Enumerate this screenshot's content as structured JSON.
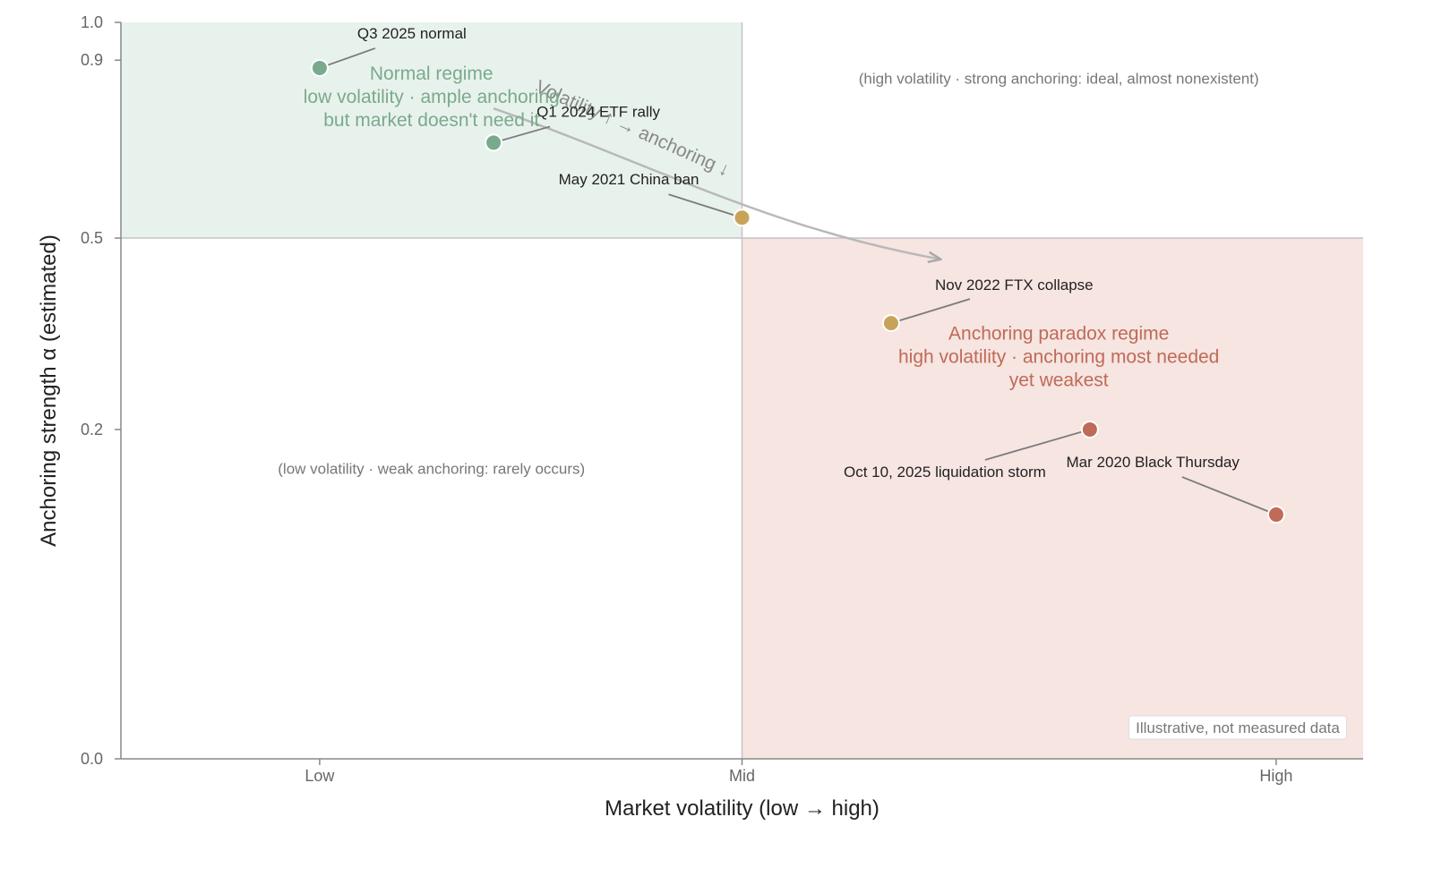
{
  "chart_data": {
    "type": "scatter",
    "xlabel": "Market volatility (low → high)",
    "ylabel": "Anchoring strength α (estimated)",
    "xlim": [
      0,
      1
    ],
    "ylim": [
      0,
      1
    ],
    "y_scale": "sqrt",
    "grid": false,
    "x_ticks": [
      {
        "value": 0.16,
        "label": "Low"
      },
      {
        "value": 0.5,
        "label": "Mid"
      },
      {
        "value": 0.93,
        "label": "High"
      }
    ],
    "y_ticks": [
      {
        "value": 0.0,
        "label": "0.0"
      },
      {
        "value": 0.2,
        "label": "0.2"
      },
      {
        "value": 0.5,
        "label": "0.5"
      },
      {
        "value": 0.9,
        "label": "0.9"
      },
      {
        "value": 1.0,
        "label": "1.0"
      }
    ],
    "x_divider": 0.5,
    "y_divider": 0.5,
    "points": [
      {
        "label": "Q3 2025 normal",
        "x": 0.16,
        "y": 0.88,
        "color": "#7aaa8d"
      },
      {
        "label": "Q1 2024 ETF rally",
        "x": 0.3,
        "y": 0.7,
        "color": "#7aaa8d"
      },
      {
        "label": "May 2021 China ban",
        "x": 0.5,
        "y": 0.54,
        "color": "#c9a25a"
      },
      {
        "label": "Nov 2022 FTX collapse",
        "x": 0.62,
        "y": 0.35,
        "color": "#c9a25a"
      },
      {
        "label": "Oct 10, 2025 liquidation storm",
        "x": 0.78,
        "y": 0.2,
        "color": "#c06a58"
      },
      {
        "label": "Mar 2020 Black Thursday",
        "x": 0.93,
        "y": 0.11,
        "color": "#c06a58"
      }
    ],
    "regions": [
      {
        "name": "normal",
        "lines": [
          "Normal regime",
          "low volatility · ample anchoring",
          "but market doesn't need it"
        ],
        "color": "#7aaa8d",
        "fill": "#e8f2ec"
      },
      {
        "name": "paradox",
        "lines": [
          "Anchoring paradox regime",
          "high volatility · anchoring most needed",
          "yet weakest"
        ],
        "color": "#c06a58",
        "fill": "#f6e5e1"
      }
    ],
    "notes": {
      "top_right": "(high volatility · strong anchoring: ideal, almost nonexistent)",
      "bottom_left": "(low volatility · weak anchoring: rarely occurs)"
    },
    "trend_label": "Volatility ↑ → anchoring ↓",
    "disclaimer": "Illustrative, not measured data"
  }
}
